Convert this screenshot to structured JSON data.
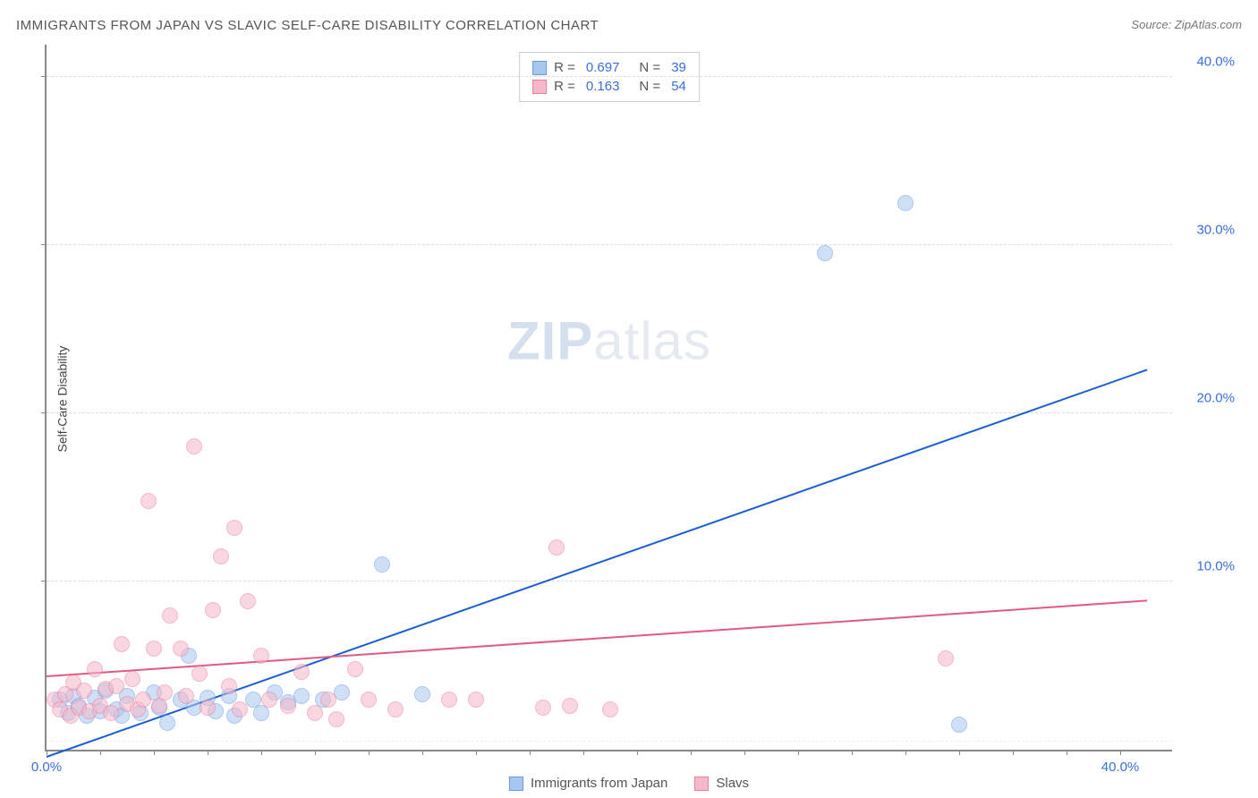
{
  "title": "IMMIGRANTS FROM JAPAN VS SLAVIC SELF-CARE DISABILITY CORRELATION CHART",
  "source_label": "Source:",
  "source_value": "ZipAtlas.com",
  "ylabel": "Self-Care Disability",
  "watermark_a": "ZIP",
  "watermark_b": "atlas",
  "chart": {
    "type": "scatter",
    "xlim": [
      0,
      42
    ],
    "ylim": [
      0,
      42
    ],
    "x_ticks_minor": [
      0,
      2,
      4,
      6,
      8,
      10,
      12,
      14,
      16,
      18,
      20,
      22,
      24,
      26,
      28,
      30,
      32,
      34,
      36,
      38,
      40
    ],
    "y_gridlines": [
      10,
      20,
      30,
      40
    ],
    "y_tick_labels": [
      "10.0%",
      "20.0%",
      "30.0%",
      "40.0%"
    ],
    "x_tick_labels": {
      "0": "0.0%",
      "40": "40.0%"
    },
    "background_color": "#ffffff",
    "grid_color": "#dddddd",
    "axis_color": "#888888",
    "tick_label_color": "#3a6fd8",
    "point_radius": 9,
    "point_opacity": 0.55,
    "series": [
      {
        "name": "Immigrants from Japan",
        "color_fill": "#a8c7f0",
        "color_stroke": "#6a9be0",
        "r": "0.697",
        "n": "39",
        "trend": {
          "x1": 0,
          "y1": -0.5,
          "x2": 41,
          "y2": 22.5,
          "color": "#1b5fd0",
          "width": 2
        },
        "points": [
          [
            0.5,
            3.0
          ],
          [
            0.8,
            2.2
          ],
          [
            1.0,
            3.2
          ],
          [
            1.2,
            2.6
          ],
          [
            1.5,
            2.0
          ],
          [
            1.8,
            3.1
          ],
          [
            2.0,
            2.3
          ],
          [
            2.2,
            3.5
          ],
          [
            2.6,
            2.4
          ],
          [
            2.8,
            2.0
          ],
          [
            3.0,
            3.2
          ],
          [
            3.5,
            2.2
          ],
          [
            4.0,
            3.4
          ],
          [
            4.2,
            2.5
          ],
          [
            4.5,
            1.6
          ],
          [
            5.0,
            3.0
          ],
          [
            5.3,
            5.6
          ],
          [
            5.5,
            2.5
          ],
          [
            6.0,
            3.1
          ],
          [
            6.3,
            2.3
          ],
          [
            6.8,
            3.2
          ],
          [
            7.0,
            2.0
          ],
          [
            7.7,
            3.0
          ],
          [
            8.0,
            2.2
          ],
          [
            8.5,
            3.4
          ],
          [
            9.0,
            2.8
          ],
          [
            9.5,
            3.2
          ],
          [
            10.3,
            3.0
          ],
          [
            11.0,
            3.4
          ],
          [
            12.5,
            11.0
          ],
          [
            14.0,
            3.3
          ],
          [
            29.0,
            29.5
          ],
          [
            32.0,
            32.5
          ],
          [
            34.0,
            1.5
          ]
        ]
      },
      {
        "name": "Slavs",
        "color_fill": "#f5b8c9",
        "color_stroke": "#e87fa0",
        "r": "0.163",
        "n": "54",
        "trend": {
          "x1": 0,
          "y1": 4.3,
          "x2": 41,
          "y2": 8.8,
          "color": "#e05a84",
          "width": 2
        },
        "points": [
          [
            0.3,
            3.0
          ],
          [
            0.5,
            2.4
          ],
          [
            0.7,
            3.3
          ],
          [
            0.9,
            2.0
          ],
          [
            1.0,
            4.0
          ],
          [
            1.2,
            2.5
          ],
          [
            1.4,
            3.5
          ],
          [
            1.6,
            2.3
          ],
          [
            1.8,
            4.8
          ],
          [
            2.0,
            2.6
          ],
          [
            2.2,
            3.6
          ],
          [
            2.4,
            2.2
          ],
          [
            2.6,
            3.8
          ],
          [
            2.8,
            6.3
          ],
          [
            3.0,
            2.7
          ],
          [
            3.2,
            4.2
          ],
          [
            3.4,
            2.4
          ],
          [
            3.6,
            3.0
          ],
          [
            3.8,
            14.8
          ],
          [
            4.0,
            6.0
          ],
          [
            4.2,
            2.6
          ],
          [
            4.4,
            3.4
          ],
          [
            4.6,
            8.0
          ],
          [
            5.0,
            6.0
          ],
          [
            5.2,
            3.2
          ],
          [
            5.5,
            18.0
          ],
          [
            5.7,
            4.5
          ],
          [
            6.0,
            2.5
          ],
          [
            6.2,
            8.3
          ],
          [
            6.5,
            11.5
          ],
          [
            6.8,
            3.8
          ],
          [
            7.0,
            13.2
          ],
          [
            7.2,
            2.4
          ],
          [
            7.5,
            8.8
          ],
          [
            8.0,
            5.6
          ],
          [
            8.3,
            3.0
          ],
          [
            9.0,
            2.6
          ],
          [
            9.5,
            4.6
          ],
          [
            10.0,
            2.2
          ],
          [
            10.5,
            3.0
          ],
          [
            10.8,
            1.8
          ],
          [
            11.5,
            4.8
          ],
          [
            12.0,
            3.0
          ],
          [
            13.0,
            2.4
          ],
          [
            15.0,
            3.0
          ],
          [
            16.0,
            3.0
          ],
          [
            18.5,
            2.5
          ],
          [
            19.0,
            12.0
          ],
          [
            19.5,
            2.6
          ],
          [
            21.0,
            2.4
          ],
          [
            33.5,
            5.4
          ]
        ]
      }
    ]
  },
  "legend_r_label": "R =",
  "legend_n_label": "N ="
}
